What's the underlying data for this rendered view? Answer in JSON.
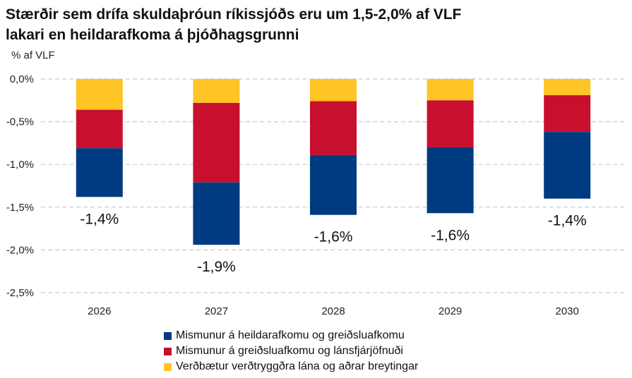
{
  "chart_data": {
    "type": "bar",
    "stacked": true,
    "title": "Stærðir sem drífa skuldaþróun ríkissjóðs eru um 1,5-2,0% af VLF lakari en heildarafkoma á þjóðhagsgrunni",
    "title_lines": [
      "Stærðir sem drífa skuldaþróun ríkissjóðs eru um 1,5-2,0% af VLF",
      "lakari en heildarafkoma á þjóðhagsgrunni"
    ],
    "ylabel": "% af VLF",
    "ylim": [
      -2.5,
      0
    ],
    "yticks": [
      0,
      -0.5,
      -1.0,
      -1.5,
      -2.0,
      -2.5
    ],
    "ytick_labels": [
      "0,0%",
      "-0,5%",
      "-1,0%",
      "-1,5%",
      "-2,0%",
      "-2,5%"
    ],
    "grid": true,
    "categories": [
      "2026",
      "2027",
      "2028",
      "2029",
      "2030"
    ],
    "series": [
      {
        "name": "Verðbætur verðtryggðra lána og aðrar breytingar",
        "color": "#FFC425",
        "values": [
          -0.36,
          -0.28,
          -0.26,
          -0.25,
          -0.19
        ]
      },
      {
        "name": "Mismunur á greiðsluafkomu og lánsfjárjöfnuði",
        "color": "#C8102E",
        "values": [
          -0.45,
          -0.93,
          -0.63,
          -0.55,
          -0.43
        ]
      },
      {
        "name": "Mismunur á heildarafkomu og greiðsluafkomu",
        "color": "#003B82",
        "values": [
          -0.57,
          -0.73,
          -0.7,
          -0.77,
          -0.78
        ]
      }
    ],
    "totals": [
      -1.38,
      -1.94,
      -1.59,
      -1.57,
      -1.4
    ],
    "total_labels": [
      "-1,4%",
      "-1,9%",
      "-1,6%",
      "-1,6%",
      "-1,4%"
    ],
    "legend_order": [
      2,
      1,
      0
    ],
    "legend_position": "bottom"
  }
}
